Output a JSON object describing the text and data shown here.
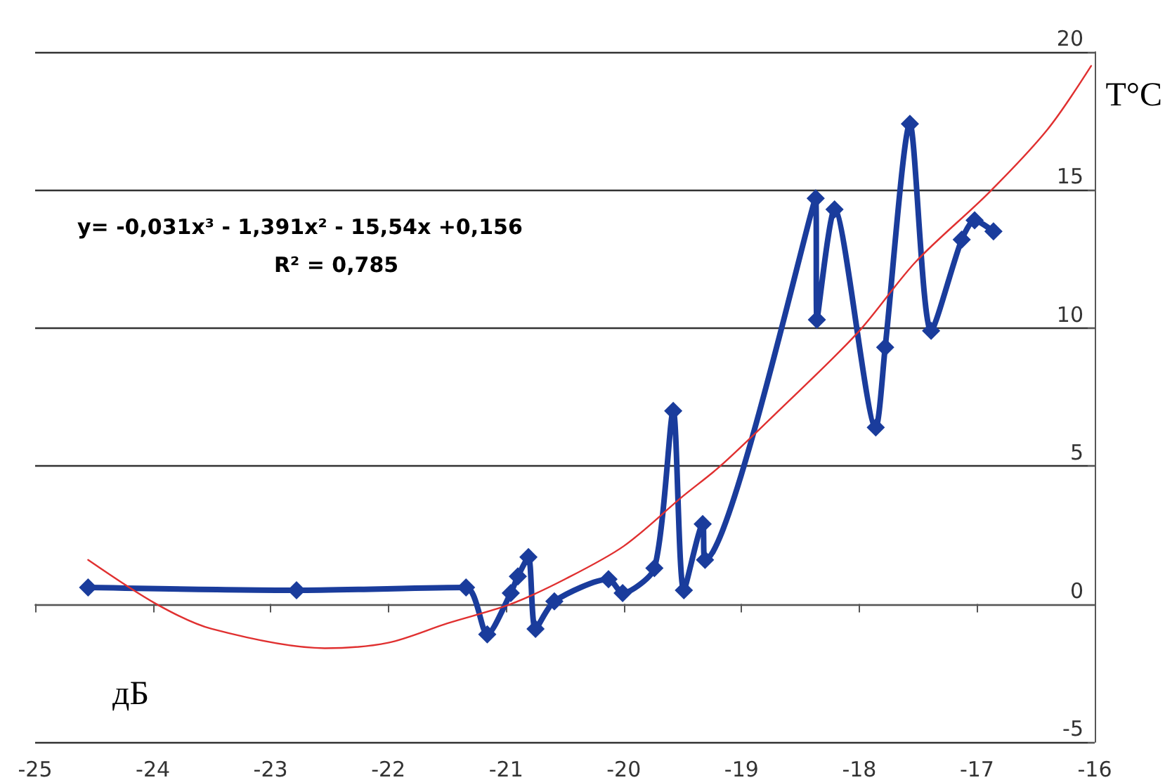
{
  "chart_data": {
    "type": "line",
    "xlabel": "дБ",
    "ylabel": "T°C",
    "annotations": [
      "y= -0,031x³ - 1,391x² - 15,54x +0,156",
      "R² = 0,785"
    ],
    "xlim": [
      -25,
      -16
    ],
    "xticks": [
      -25,
      -24,
      -23,
      -22,
      -21,
      -20,
      -19,
      -18,
      -17,
      -16
    ],
    "ylim": [
      -5,
      20
    ],
    "yticks": [
      -5,
      0,
      5,
      10,
      15,
      20
    ],
    "grid": "y",
    "series": [
      {
        "color": "#1a3c9c",
        "marker": "diamond",
        "x": [
          -24.55,
          -22.78,
          -21.34,
          -21.16,
          -20.96,
          -20.9,
          -20.81,
          -20.75,
          -20.59,
          -20.13,
          -20.01,
          -19.74,
          -19.58,
          -19.49,
          -19.33,
          -19.31,
          -18.37,
          -18.36,
          -18.21,
          -17.86,
          -17.78,
          -17.57,
          -17.39,
          -17.13,
          -17.02,
          -16.86
        ],
        "values": [
          0.6,
          0.5,
          0.6,
          -1.1,
          0.4,
          1.0,
          1.7,
          -0.9,
          0.1,
          0.9,
          0.4,
          1.3,
          7.0,
          0.5,
          2.9,
          1.6,
          14.7,
          10.3,
          14.3,
          6.4,
          9.3,
          17.4,
          9.9,
          13.2,
          13.9,
          13.5
        ]
      },
      {
        "color": "#e03030",
        "marker": "none",
        "x": [
          -24.55,
          -23.97,
          -23.5,
          -22.54,
          -22.0,
          -21.5,
          -20.96,
          -20.5,
          -20.0,
          -19.5,
          -19.18,
          -18.71,
          -18.02,
          -17.52,
          -16.9,
          -16.4,
          -16.03
        ],
        "values": [
          1.6,
          0,
          -0.9,
          -1.6,
          -1.4,
          -0.7,
          0,
          0.9,
          2.1,
          3.9,
          5.0,
          6.9,
          9.8,
          12.4,
          14.9,
          17.2,
          19.5
        ]
      }
    ]
  }
}
